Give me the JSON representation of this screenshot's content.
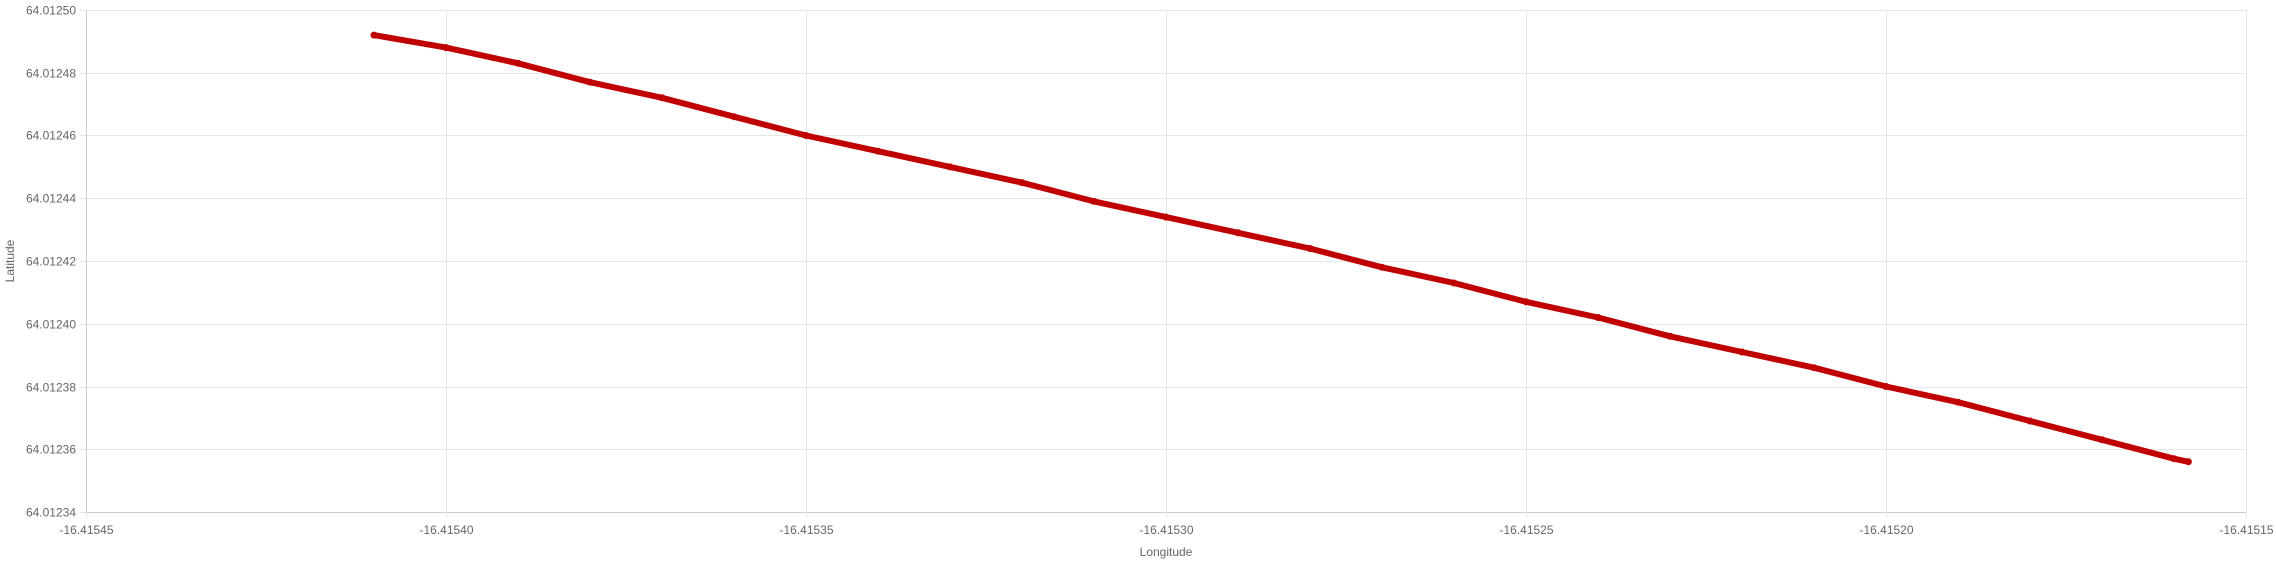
{
  "chart_data": {
    "type": "scatter",
    "title": "",
    "xlabel": "Longitude",
    "ylabel": "Latitude",
    "xlim": [
      -16.41545,
      -16.41515
    ],
    "ylim": [
      64.01234,
      64.0125
    ],
    "x_ticks": [
      "-16.41545",
      "-16.41540",
      "-16.41535",
      "-16.41530",
      "-16.41525",
      "-16.41520",
      "-16.41515"
    ],
    "y_ticks": [
      "64.01234",
      "64.01236",
      "64.01238",
      "64.01240",
      "64.01242",
      "64.01244",
      "64.01246",
      "64.01248",
      "64.01250"
    ],
    "grid": true,
    "legend": "none",
    "colors": {
      "series": "#c00000",
      "ylabel": "#c00000",
      "grid": "#e6e6e6",
      "text": "#666666"
    },
    "series": [
      {
        "x": [
          -16.41541,
          -16.4154,
          -16.41539,
          -16.41538,
          -16.41537,
          -16.41536,
          -16.41535,
          -16.41534,
          -16.41533,
          -16.41532,
          -16.41531,
          -16.4153,
          -16.41529,
          -16.41528,
          -16.41527,
          -16.41526,
          -16.41525,
          -16.41524,
          -16.41523,
          -16.41522,
          -16.41521,
          -16.4152,
          -16.41519,
          -16.41518,
          -16.41517,
          -16.41516,
          -16.415158
        ],
        "y": [
          64.012492,
          64.012488,
          64.012483,
          64.012477,
          64.012472,
          64.012466,
          64.01246,
          64.012455,
          64.01245,
          64.012445,
          64.012439,
          64.012434,
          64.012429,
          64.012424,
          64.012418,
          64.012413,
          64.012407,
          64.012402,
          64.012396,
          64.012391,
          64.012386,
          64.01238,
          64.012375,
          64.012369,
          64.012363,
          64.012357,
          64.012356
        ]
      }
    ]
  }
}
